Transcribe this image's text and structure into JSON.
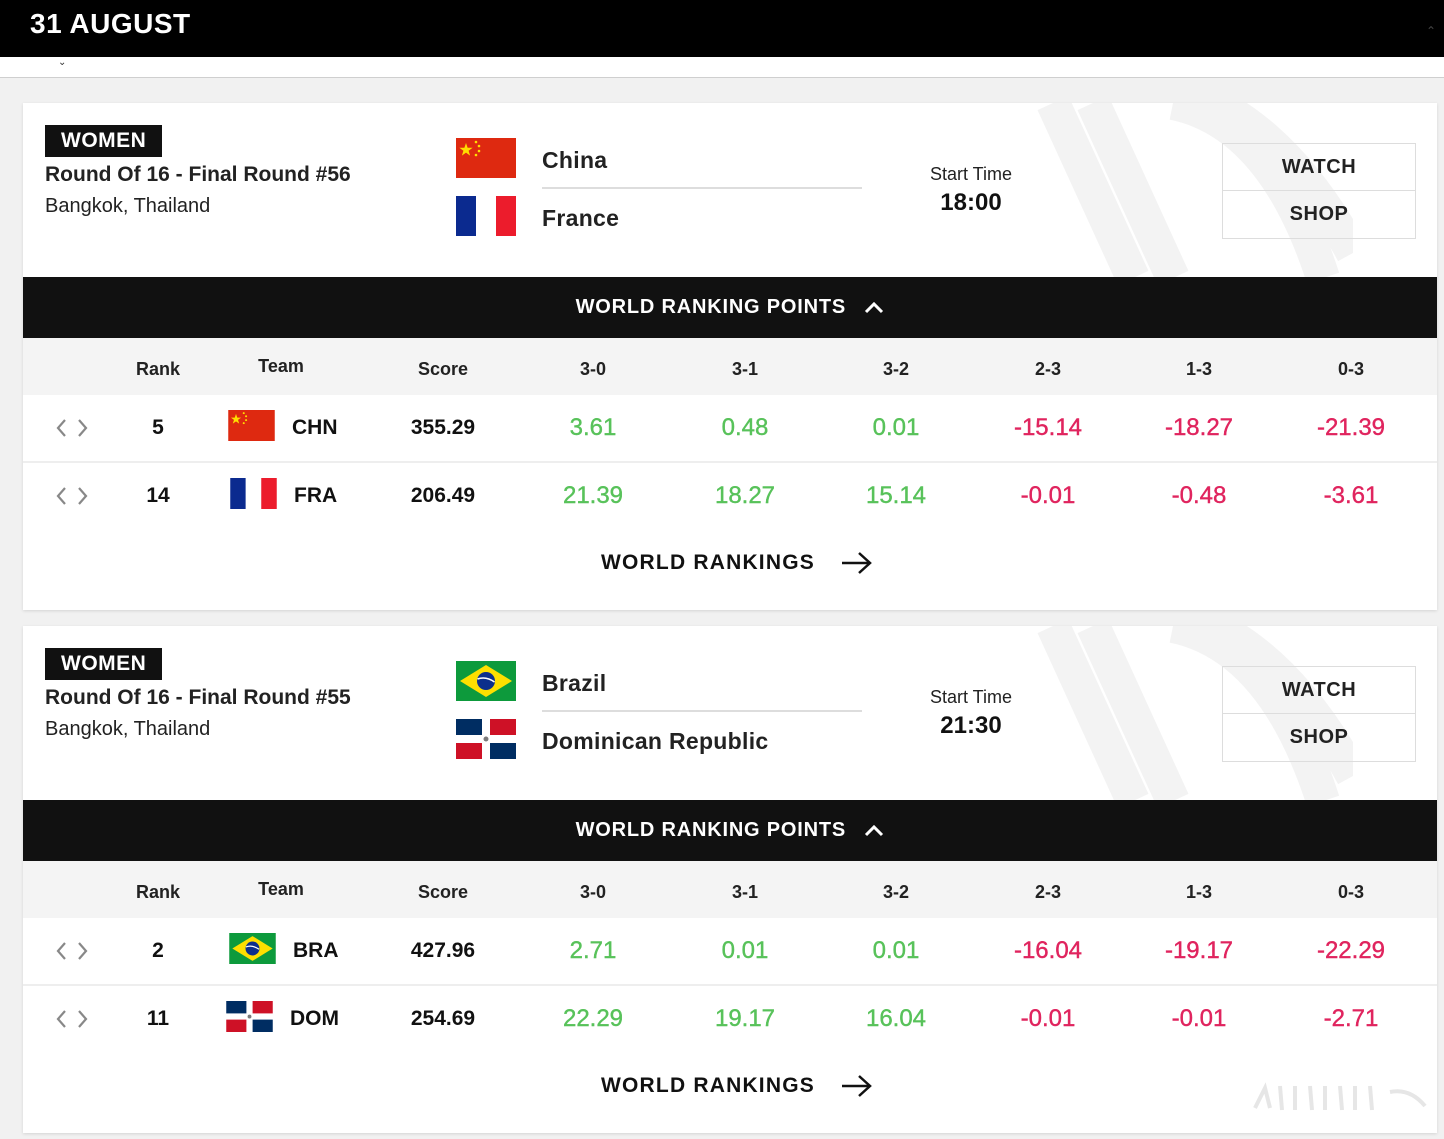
{
  "header": {
    "date": "31 AUGUST"
  },
  "table_headers": {
    "rank": "Rank",
    "team": "Team",
    "score": "Score",
    "r30": "3-0",
    "r31": "3-1",
    "r32": "3-2",
    "r23": "2-3",
    "r13": "1-3",
    "r03": "0-3"
  },
  "matches": [
    {
      "gender": "WOMEN",
      "round": "Round Of 16 - Final Round #56",
      "venue": "Bangkok, Thailand",
      "team1": {
        "name": "China",
        "flag": "china-flag"
      },
      "team2": {
        "name": "France",
        "flag": "france-flag"
      },
      "start_label": "Start Time",
      "start_time": "18:00",
      "watch_label": "WATCH",
      "shop_label": "SHOP",
      "ranking_header": "WORLD RANKING POINTS",
      "rows": [
        {
          "rank": "5",
          "code": "CHN",
          "score": "355.29",
          "r30": "3.61",
          "r31": "0.48",
          "r32": "0.01",
          "r23": "-15.14",
          "r13": "-18.27",
          "r03": "-21.39"
        },
        {
          "rank": "14",
          "code": "FRA",
          "score": "206.49",
          "r30": "21.39",
          "r31": "18.27",
          "r32": "15.14",
          "r23": "-0.01",
          "r13": "-0.48",
          "r03": "-3.61"
        }
      ],
      "rankings_link": "WORLD RANKINGS"
    },
    {
      "gender": "WOMEN",
      "round": "Round Of 16 - Final Round #55",
      "venue": "Bangkok, Thailand",
      "team1": {
        "name": "Brazil",
        "flag": "brazil-flag"
      },
      "team2": {
        "name": "Dominican Republic",
        "flag": "dominican-republic-flag"
      },
      "start_label": "Start Time",
      "start_time": "21:30",
      "watch_label": "WATCH",
      "shop_label": "SHOP",
      "ranking_header": "WORLD RANKING POINTS",
      "rows": [
        {
          "rank": "2",
          "code": "BRA",
          "score": "427.96",
          "r30": "2.71",
          "r31": "0.01",
          "r32": "0.01",
          "r23": "-16.04",
          "r13": "-19.17",
          "r03": "-22.29"
        },
        {
          "rank": "11",
          "code": "DOM",
          "score": "254.69",
          "r30": "22.29",
          "r31": "19.17",
          "r32": "16.04",
          "r23": "-0.01",
          "r13": "-0.01",
          "r03": "-2.71"
        }
      ],
      "rankings_link": "WORLD RANKINGS"
    }
  ],
  "colors": {
    "positive": "#58c25a",
    "negative": "#e0245e",
    "bar": "#111111"
  }
}
